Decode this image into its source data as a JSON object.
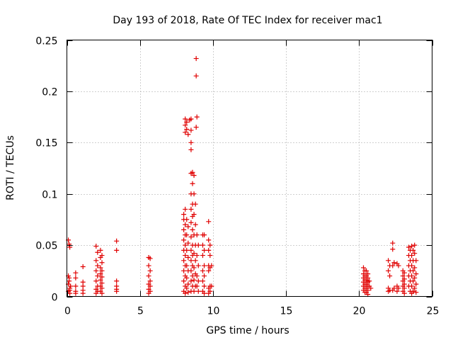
{
  "chart_data": {
    "type": "scatter",
    "title": "Day 193 of 2018, Rate Of TEC Index for receiver mac1",
    "xlabel": "GPS time / hours",
    "ylabel": "ROTI / TECUs",
    "xlim": [
      0,
      25
    ],
    "ylim": [
      0,
      0.25
    ],
    "x_ticks": [
      0,
      5,
      10,
      15,
      20,
      25
    ],
    "y_ticks": [
      0,
      0.05,
      0.1,
      0.15,
      0.2,
      0.25
    ],
    "x_tick_labels": [
      "0",
      "5",
      "10",
      "15",
      "20",
      "25"
    ],
    "y_tick_labels": [
      "0",
      "0.05",
      "0.1",
      "0.15",
      "0.2",
      "0.25"
    ],
    "grid": true,
    "marker": "+",
    "color": "#e00000",
    "series": [
      {
        "name": "ROTI",
        "points": [
          [
            0.1,
            0.055
          ],
          [
            0.15,
            0.051
          ],
          [
            0.2,
            0.048
          ],
          [
            0.1,
            0.02
          ],
          [
            0.15,
            0.015
          ],
          [
            0.1,
            0.012
          ],
          [
            0.2,
            0.008
          ],
          [
            0.1,
            0.005
          ],
          [
            0.2,
            0.003
          ],
          [
            0.25,
            0.01
          ],
          [
            0.15,
            0.018
          ],
          [
            0.2,
            0.006
          ],
          [
            0.6,
            0.023
          ],
          [
            0.6,
            0.018
          ],
          [
            0.6,
            0.01
          ],
          [
            0.6,
            0.005
          ],
          [
            0.6,
            0.003
          ],
          [
            1.1,
            0.029
          ],
          [
            1.1,
            0.014
          ],
          [
            1.1,
            0.01
          ],
          [
            1.1,
            0.006
          ],
          [
            1.1,
            0.003
          ],
          [
            2.0,
            0.049
          ],
          [
            2.1,
            0.043
          ],
          [
            2.0,
            0.035
          ],
          [
            2.1,
            0.03
          ],
          [
            2.0,
            0.025
          ],
          [
            2.1,
            0.02
          ],
          [
            2.0,
            0.015
          ],
          [
            2.1,
            0.01
          ],
          [
            2.0,
            0.007
          ],
          [
            2.1,
            0.005
          ],
          [
            2.0,
            0.003
          ],
          [
            2.3,
            0.045
          ],
          [
            2.4,
            0.04
          ],
          [
            2.3,
            0.038
          ],
          [
            2.4,
            0.033
          ],
          [
            2.3,
            0.028
          ],
          [
            2.4,
            0.025
          ],
          [
            2.3,
            0.022
          ],
          [
            2.4,
            0.019
          ],
          [
            2.3,
            0.016
          ],
          [
            2.4,
            0.013
          ],
          [
            2.3,
            0.01
          ],
          [
            2.4,
            0.008
          ],
          [
            2.3,
            0.005
          ],
          [
            2.4,
            0.003
          ],
          [
            3.4,
            0.054
          ],
          [
            3.4,
            0.045
          ],
          [
            3.4,
            0.015
          ],
          [
            3.4,
            0.01
          ],
          [
            3.4,
            0.007
          ],
          [
            3.4,
            0.005
          ],
          [
            5.6,
            0.038
          ],
          [
            5.7,
            0.037
          ],
          [
            5.6,
            0.03
          ],
          [
            5.7,
            0.025
          ],
          [
            5.6,
            0.02
          ],
          [
            5.7,
            0.015
          ],
          [
            5.6,
            0.012
          ],
          [
            5.7,
            0.01
          ],
          [
            5.6,
            0.007
          ],
          [
            5.7,
            0.005
          ],
          [
            5.6,
            0.003
          ],
          [
            8.0,
            0.08
          ],
          [
            8.1,
            0.085
          ],
          [
            8.0,
            0.075
          ],
          [
            8.1,
            0.07
          ],
          [
            8.0,
            0.065
          ],
          [
            8.1,
            0.06
          ],
          [
            8.0,
            0.055
          ],
          [
            8.1,
            0.05
          ],
          [
            8.0,
            0.045
          ],
          [
            8.1,
            0.04
          ],
          [
            8.0,
            0.035
          ],
          [
            8.1,
            0.03
          ],
          [
            8.0,
            0.025
          ],
          [
            8.1,
            0.02
          ],
          [
            8.0,
            0.015
          ],
          [
            8.1,
            0.01
          ],
          [
            8.0,
            0.005
          ],
          [
            8.1,
            0.003
          ],
          [
            8.1,
            0.173
          ],
          [
            8.2,
            0.17
          ],
          [
            8.1,
            0.167
          ],
          [
            8.2,
            0.163
          ],
          [
            8.1,
            0.16
          ],
          [
            8.3,
            0.158
          ],
          [
            8.4,
            0.172
          ],
          [
            8.2,
            0.075
          ],
          [
            8.3,
            0.068
          ],
          [
            8.2,
            0.06
          ],
          [
            8.3,
            0.052
          ],
          [
            8.2,
            0.045
          ],
          [
            8.3,
            0.038
          ],
          [
            8.2,
            0.03
          ],
          [
            8.3,
            0.025
          ],
          [
            8.2,
            0.018
          ],
          [
            8.3,
            0.012
          ],
          [
            8.2,
            0.008
          ],
          [
            8.3,
            0.004
          ],
          [
            8.5,
            0.173
          ],
          [
            8.5,
            0.162
          ],
          [
            8.5,
            0.15
          ],
          [
            8.5,
            0.143
          ],
          [
            8.6,
            0.121
          ],
          [
            8.5,
            0.12
          ],
          [
            8.6,
            0.11
          ],
          [
            8.5,
            0.1
          ],
          [
            8.6,
            0.09
          ],
          [
            8.5,
            0.085
          ],
          [
            8.6,
            0.078
          ],
          [
            8.5,
            0.072
          ],
          [
            8.6,
            0.065
          ],
          [
            8.5,
            0.058
          ],
          [
            8.6,
            0.05
          ],
          [
            8.5,
            0.045
          ],
          [
            8.6,
            0.04
          ],
          [
            8.5,
            0.035
          ],
          [
            8.6,
            0.03
          ],
          [
            8.5,
            0.025
          ],
          [
            8.6,
            0.02
          ],
          [
            8.5,
            0.015
          ],
          [
            8.6,
            0.01
          ],
          [
            8.5,
            0.005
          ],
          [
            8.7,
            0.118
          ],
          [
            8.7,
            0.1
          ],
          [
            8.8,
            0.09
          ],
          [
            8.7,
            0.08
          ],
          [
            8.8,
            0.07
          ],
          [
            8.7,
            0.06
          ],
          [
            8.8,
            0.05
          ],
          [
            8.7,
            0.042
          ],
          [
            8.8,
            0.035
          ],
          [
            8.7,
            0.028
          ],
          [
            8.8,
            0.022
          ],
          [
            8.7,
            0.016
          ],
          [
            8.8,
            0.01
          ],
          [
            8.7,
            0.005
          ],
          [
            8.85,
            0.232
          ],
          [
            8.85,
            0.215
          ],
          [
            8.9,
            0.175
          ],
          [
            8.85,
            0.165
          ],
          [
            8.9,
            0.06
          ],
          [
            9.0,
            0.05
          ],
          [
            8.9,
            0.04
          ],
          [
            9.0,
            0.03
          ],
          [
            8.9,
            0.02
          ],
          [
            9.0,
            0.015
          ],
          [
            8.9,
            0.01
          ],
          [
            9.0,
            0.005
          ],
          [
            9.3,
            0.06
          ],
          [
            9.4,
            0.06
          ],
          [
            9.3,
            0.05
          ],
          [
            9.4,
            0.045
          ],
          [
            9.3,
            0.04
          ],
          [
            9.4,
            0.03
          ],
          [
            9.3,
            0.025
          ],
          [
            9.4,
            0.02
          ],
          [
            9.3,
            0.015
          ],
          [
            9.4,
            0.01
          ],
          [
            9.3,
            0.005
          ],
          [
            9.4,
            0.003
          ],
          [
            9.7,
            0.073
          ],
          [
            9.7,
            0.055
          ],
          [
            9.8,
            0.05
          ],
          [
            9.7,
            0.045
          ],
          [
            9.8,
            0.04
          ],
          [
            9.7,
            0.03
          ],
          [
            9.8,
            0.028
          ],
          [
            9.7,
            0.025
          ],
          [
            9.8,
            0.01
          ],
          [
            9.7,
            0.008
          ],
          [
            9.8,
            0.005
          ],
          [
            9.7,
            0.003
          ],
          [
            9.9,
            0.03
          ],
          [
            9.9,
            0.01
          ],
          [
            20.3,
            0.028
          ],
          [
            20.4,
            0.025
          ],
          [
            20.3,
            0.022
          ],
          [
            20.4,
            0.02
          ],
          [
            20.3,
            0.018
          ],
          [
            20.4,
            0.016
          ],
          [
            20.3,
            0.014
          ],
          [
            20.4,
            0.012
          ],
          [
            20.3,
            0.01
          ],
          [
            20.4,
            0.008
          ],
          [
            20.3,
            0.006
          ],
          [
            20.4,
            0.004
          ],
          [
            20.5,
            0.025
          ],
          [
            20.6,
            0.022
          ],
          [
            20.5,
            0.02
          ],
          [
            20.6,
            0.018
          ],
          [
            20.5,
            0.016
          ],
          [
            20.6,
            0.014
          ],
          [
            20.5,
            0.012
          ],
          [
            20.6,
            0.01
          ],
          [
            20.5,
            0.008
          ],
          [
            20.6,
            0.006
          ],
          [
            20.5,
            0.004
          ],
          [
            20.6,
            0.002
          ],
          [
            20.7,
            0.015
          ],
          [
            20.7,
            0.01
          ],
          [
            20.8,
            0.008
          ],
          [
            22.0,
            0.035
          ],
          [
            22.1,
            0.03
          ],
          [
            22.0,
            0.025
          ],
          [
            22.1,
            0.02
          ],
          [
            22.0,
            0.008
          ],
          [
            22.1,
            0.006
          ],
          [
            22.0,
            0.005
          ],
          [
            22.3,
            0.052
          ],
          [
            22.3,
            0.046
          ],
          [
            22.4,
            0.033
          ],
          [
            22.3,
            0.03
          ],
          [
            22.4,
            0.008
          ],
          [
            22.3,
            0.006
          ],
          [
            22.6,
            0.032
          ],
          [
            22.7,
            0.03
          ],
          [
            22.6,
            0.01
          ],
          [
            22.7,
            0.008
          ],
          [
            22.6,
            0.005
          ],
          [
            23.0,
            0.025
          ],
          [
            23.1,
            0.023
          ],
          [
            23.0,
            0.02
          ],
          [
            23.1,
            0.017
          ],
          [
            23.0,
            0.015
          ],
          [
            23.1,
            0.012
          ],
          [
            23.0,
            0.01
          ],
          [
            23.1,
            0.008
          ],
          [
            23.0,
            0.005
          ],
          [
            23.1,
            0.003
          ],
          [
            23.4,
            0.048
          ],
          [
            23.5,
            0.045
          ],
          [
            23.4,
            0.04
          ],
          [
            23.5,
            0.035
          ],
          [
            23.4,
            0.03
          ],
          [
            23.5,
            0.025
          ],
          [
            23.4,
            0.02
          ],
          [
            23.5,
            0.015
          ],
          [
            23.4,
            0.01
          ],
          [
            23.5,
            0.005
          ],
          [
            23.6,
            0.049
          ],
          [
            23.7,
            0.045
          ],
          [
            23.6,
            0.04
          ],
          [
            23.7,
            0.035
          ],
          [
            23.6,
            0.03
          ],
          [
            23.7,
            0.025
          ],
          [
            23.6,
            0.02
          ],
          [
            23.7,
            0.015
          ],
          [
            23.6,
            0.01
          ],
          [
            23.7,
            0.005
          ],
          [
            23.6,
            0.003
          ],
          [
            23.8,
            0.05
          ],
          [
            23.8,
            0.042
          ],
          [
            23.9,
            0.035
          ],
          [
            23.8,
            0.028
          ],
          [
            23.9,
            0.022
          ],
          [
            23.8,
            0.018
          ],
          [
            23.9,
            0.012
          ],
          [
            23.8,
            0.008
          ],
          [
            23.9,
            0.004
          ]
        ]
      }
    ]
  }
}
